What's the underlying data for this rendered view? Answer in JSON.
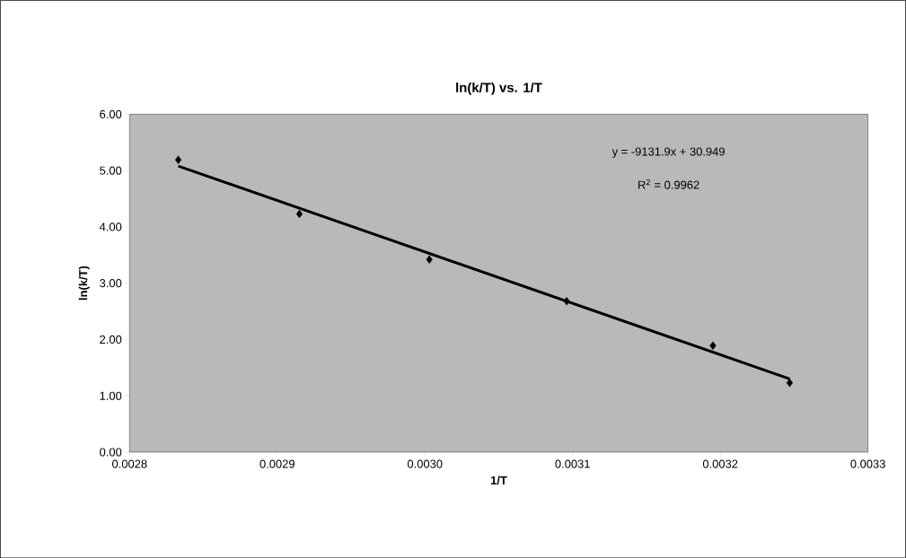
{
  "chart_data": {
    "type": "scatter",
    "title": "ln(k/T) vs. 1/T",
    "xlabel": "1/T",
    "ylabel": "ln(k/T)",
    "annotations": [
      "y = -9131.9x + 30.949",
      "R$^{2}$ = 0.9962"
    ],
    "series": [
      {
        "color": "#000000",
        "x": [
          0.002833,
          0.002915,
          0.003003,
          0.003096,
          0.003195,
          0.003247
        ],
        "values": [
          5.19,
          4.23,
          3.42,
          2.68,
          1.89,
          1.23
        ]
      },
      {
        "type": "line",
        "marker": "none",
        "color": "#000000",
        "x": [
          0.002833,
          0.003247
        ],
        "values": [
          5.08,
          1.3
        ]
      }
    ],
    "marker": "diamond",
    "grid": false,
    "xlim": [
      0.0028,
      0.0033
    ],
    "ylim": [
      0,
      6
    ],
    "xticks": [
      {
        "value": 0.0028,
        "label": "0.0028"
      },
      {
        "value": 0.0029,
        "label": "0.0029"
      },
      {
        "value": 0.003,
        "label": "0.0030"
      },
      {
        "value": 0.0031,
        "label": "0.0031"
      },
      {
        "value": 0.0032,
        "label": "0.0032"
      },
      {
        "value": 0.0033,
        "label": "0.0033"
      }
    ],
    "yticks": [
      {
        "value": 0,
        "label": "0.00"
      },
      {
        "value": 1,
        "label": "1.00"
      },
      {
        "value": 2,
        "label": "2.00"
      },
      {
        "value": 3,
        "label": "3.00"
      },
      {
        "value": 4,
        "label": "4.00"
      },
      {
        "value": 5,
        "label": "5.00"
      },
      {
        "value": 6,
        "label": "6.00"
      }
    ]
  }
}
